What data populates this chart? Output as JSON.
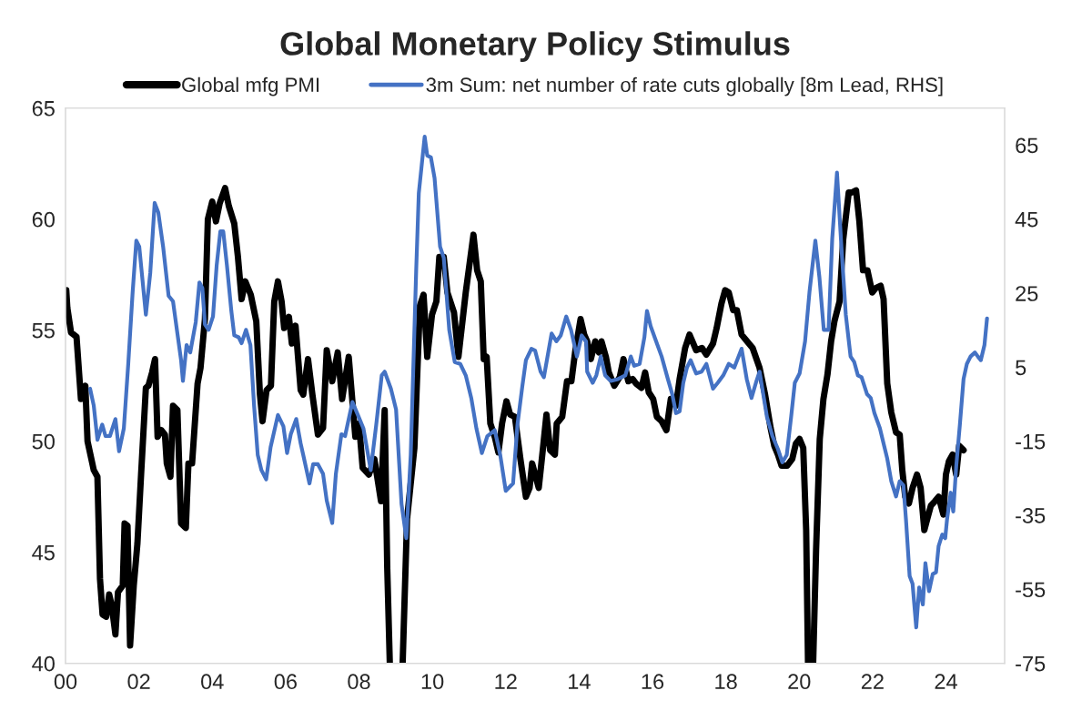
{
  "chart_data": {
    "type": "line",
    "title": "Global Monetary Policy Stimulus",
    "legend": "top",
    "grid": false,
    "xlim": [
      2000,
      2025.6
    ],
    "xticks": [
      {
        "value": 2000,
        "label": "00"
      },
      {
        "value": 2002,
        "label": "02"
      },
      {
        "value": 2004,
        "label": "04"
      },
      {
        "value": 2006,
        "label": "06"
      },
      {
        "value": 2008,
        "label": "08"
      },
      {
        "value": 2010,
        "label": "10"
      },
      {
        "value": 2012,
        "label": "12"
      },
      {
        "value": 2014,
        "label": "14"
      },
      {
        "value": 2016,
        "label": "16"
      },
      {
        "value": 2018,
        "label": "18"
      },
      {
        "value": 2020,
        "label": "20"
      },
      {
        "value": 2022,
        "label": "22"
      },
      {
        "value": 2024,
        "label": "24"
      }
    ],
    "ylim": [
      40,
      65
    ],
    "yticks": [
      40,
      45,
      50,
      55,
      60,
      65
    ],
    "y2lim": [
      -75,
      75
    ],
    "y2ticks": [
      -75,
      -55,
      -35,
      -15,
      5,
      25,
      45,
      65
    ],
    "series": [
      {
        "name": "Global mfg PMI",
        "color": "#000000",
        "x": [
          2000.02,
          2000.05,
          2000.15,
          2000.3,
          2000.42,
          2000.54,
          2000.6,
          2000.77,
          2000.87,
          2000.94,
          2001.01,
          2001.11,
          2001.19,
          2001.26,
          2001.36,
          2001.43,
          2001.56,
          2001.61,
          2001.69,
          2001.76,
          2001.86,
          2001.96,
          2002.06,
          2002.19,
          2002.26,
          2002.36,
          2002.44,
          2002.51,
          2002.61,
          2002.71,
          2002.76,
          2002.86,
          2002.93,
          2003.05,
          2003.15,
          2003.28,
          2003.35,
          2003.45,
          2003.6,
          2003.68,
          2003.8,
          2003.88,
          2004.0,
          2004.1,
          2004.2,
          2004.35,
          2004.45,
          2004.6,
          2004.7,
          2004.8,
          2004.9,
          2005.05,
          2005.2,
          2005.3,
          2005.37,
          2005.48,
          2005.6,
          2005.69,
          2005.79,
          2005.89,
          2005.96,
          2006.09,
          2006.17,
          2006.27,
          2006.41,
          2006.48,
          2006.61,
          2006.73,
          2006.88,
          2007.02,
          2007.12,
          2007.27,
          2007.42,
          2007.54,
          2007.72,
          2007.9,
          2008.0,
          2008.1,
          2008.27,
          2008.42,
          2008.6,
          2008.7,
          2008.77,
          2008.84,
          2009.0,
          2009.19,
          2009.31,
          2009.51,
          2009.66,
          2009.76,
          2009.86,
          2009.99,
          2010.11,
          2010.19,
          2010.31,
          2010.41,
          2010.59,
          2010.71,
          2010.91,
          2011.12,
          2011.22,
          2011.32,
          2011.4,
          2011.48,
          2011.58,
          2011.7,
          2011.8,
          2011.9,
          2012.02,
          2012.12,
          2012.25,
          2012.4,
          2012.55,
          2012.65,
          2012.72,
          2012.9,
          2013.01,
          2013.11,
          2013.21,
          2013.34,
          2013.39,
          2013.54,
          2013.67,
          2013.79,
          2013.89,
          2014.04,
          2014.14,
          2014.22,
          2014.32,
          2014.44,
          2014.54,
          2014.61,
          2014.73,
          2014.81,
          2014.96,
          2015.11,
          2015.21,
          2015.34,
          2015.46,
          2015.55,
          2015.7,
          2015.8,
          2015.9,
          2016.02,
          2016.12,
          2016.25,
          2016.38,
          2016.5,
          2016.64,
          2016.74,
          2016.89,
          2017.01,
          2017.19,
          2017.35,
          2017.47,
          2017.65,
          2017.75,
          2017.88,
          2017.98,
          2018.08,
          2018.2,
          2018.3,
          2018.43,
          2018.58,
          2018.73,
          2018.92,
          2019.07,
          2019.22,
          2019.32,
          2019.42,
          2019.52,
          2019.67,
          2019.81,
          2019.91,
          2020.01,
          2020.11,
          2020.19,
          2020.24,
          2020.31,
          2020.38,
          2020.46,
          2020.56,
          2020.66,
          2020.77,
          2020.87,
          2020.96,
          2021.1,
          2021.2,
          2021.35,
          2021.43,
          2021.55,
          2021.64,
          2021.74,
          2021.86,
          2021.99,
          2022.09,
          2022.22,
          2022.3,
          2022.4,
          2022.51,
          2022.64,
          2022.74,
          2022.81,
          2022.89,
          2022.99,
          2023.09,
          2023.21,
          2023.31,
          2023.41,
          2023.49,
          2023.59,
          2023.7,
          2023.8,
          2023.93,
          2024.0,
          2024.08,
          2024.18,
          2024.28,
          2024.36,
          2024.48
        ],
        "values": [
          56.8,
          56.0,
          54.9,
          54.7,
          51.9,
          52.5,
          50.0,
          48.7,
          48.4,
          43.8,
          42.2,
          42.1,
          43.1,
          42.6,
          41.3,
          43.2,
          43.5,
          46.3,
          46.2,
          40.8,
          43.5,
          45.4,
          48.5,
          52.4,
          52.5,
          53.1,
          53.7,
          50.2,
          50.5,
          50.3,
          49.0,
          48.4,
          51.6,
          51.4,
          46.3,
          46.1,
          49.0,
          49.0,
          52.6,
          53.3,
          55.5,
          60.0,
          60.8,
          59.9,
          60.7,
          61.4,
          60.6,
          59.8,
          58.3,
          56.4,
          57.2,
          56.6,
          55.4,
          52.1,
          50.9,
          52.3,
          52.5,
          56.3,
          57.2,
          56.3,
          55.1,
          55.6,
          54.4,
          55.2,
          52.3,
          52.1,
          53.7,
          52.1,
          50.3,
          50.6,
          54.1,
          52.7,
          54.0,
          51.9,
          53.8,
          50.2,
          50.8,
          48.8,
          48.5,
          49.2,
          47.3,
          51.4,
          44.3,
          40.0,
          null,
          40.0,
          46.5,
          49.7,
          56.1,
          56.6,
          53.8,
          55.7,
          56.3,
          58.3,
          58.3,
          56.7,
          55.8,
          53.8,
          56.7,
          59.3,
          57.7,
          57.2,
          53.7,
          53.8,
          50.8,
          50.2,
          49.5,
          50.8,
          51.8,
          51.2,
          51.1,
          49.2,
          47.5,
          47.9,
          49.0,
          47.9,
          49.6,
          51.2,
          49.6,
          49.4,
          50.8,
          51.1,
          52.7,
          52.7,
          54.0,
          55.5,
          54.8,
          54.5,
          53.7,
          54.5,
          54.0,
          54.5,
          53.8,
          53.1,
          52.5,
          52.9,
          53.7,
          52.7,
          52.8,
          52.6,
          52.4,
          53.1,
          52.2,
          51.9,
          51.1,
          50.9,
          50.5,
          51.9,
          51.6,
          52.8,
          54.2,
          54.8,
          54.1,
          54.2,
          53.9,
          54.4,
          55.1,
          56.2,
          56.8,
          56.7,
          55.9,
          55.9,
          54.8,
          54.5,
          54.2,
          53.3,
          52.1,
          50.6,
          49.8,
          49.4,
          48.9,
          48.9,
          49.2,
          49.9,
          50.1,
          49.7,
          46.0,
          40.0,
          null,
          40.0,
          45.1,
          50.1,
          51.9,
          53.0,
          54.5,
          55.4,
          56.3,
          59.1,
          61.2,
          61.2,
          61.3,
          59.9,
          57.7,
          57.7,
          56.7,
          56.9,
          57.0,
          56.4,
          52.6,
          51.3,
          50.4,
          50.3,
          48.7,
          47.5,
          47.2,
          47.9,
          48.5,
          47.9,
          46.0,
          46.5,
          47.1,
          47.3,
          47.5,
          46.7,
          48.5,
          49.1,
          49.4,
          48.5,
          49.8,
          49.6
        ]
      },
      {
        "name": "3m Sum: net number of rate cuts globally [8m Lead, RHS]",
        "color": "#4472c4",
        "axis": "y2",
        "x": [
          2000.67,
          2000.77,
          2000.87,
          2001.0,
          2001.09,
          2001.21,
          2001.36,
          2001.46,
          2001.59,
          2001.71,
          2001.83,
          2001.93,
          2002.01,
          2002.19,
          2002.31,
          2002.43,
          2002.53,
          2002.66,
          2002.81,
          2002.93,
          2003.05,
          2003.15,
          2003.2,
          2003.3,
          2003.4,
          2003.55,
          2003.65,
          2003.73,
          2003.8,
          2003.9,
          2004.02,
          2004.12,
          2004.22,
          2004.3,
          2004.4,
          2004.52,
          2004.6,
          2004.72,
          2004.8,
          2004.92,
          2005.04,
          2005.14,
          2005.24,
          2005.34,
          2005.47,
          2005.59,
          2005.79,
          2005.94,
          2006.04,
          2006.14,
          2006.29,
          2006.41,
          2006.48,
          2006.65,
          2006.75,
          2006.88,
          2007.02,
          2007.12,
          2007.27,
          2007.37,
          2007.52,
          2007.62,
          2007.82,
          2007.97,
          2008.12,
          2008.32,
          2008.47,
          2008.62,
          2008.7,
          2008.87,
          2009.01,
          2009.16,
          2009.29,
          2009.41,
          2009.56,
          2009.63,
          2009.79,
          2009.86,
          2009.96,
          2010.06,
          2010.21,
          2010.31,
          2010.46,
          2010.61,
          2010.76,
          2010.91,
          2011.06,
          2011.2,
          2011.35,
          2011.5,
          2011.7,
          2011.85,
          2012.0,
          2012.2,
          2012.32,
          2012.45,
          2012.55,
          2012.7,
          2012.8,
          2012.95,
          2013.04,
          2013.25,
          2013.38,
          2013.5,
          2013.65,
          2013.78,
          2013.94,
          2014.07,
          2014.19,
          2014.22,
          2014.37,
          2014.47,
          2014.59,
          2014.71,
          2014.86,
          2015.06,
          2015.26,
          2015.41,
          2015.5,
          2015.65,
          2015.78,
          2015.85,
          2015.95,
          2016.1,
          2016.25,
          2016.42,
          2016.54,
          2016.64,
          2016.74,
          2016.84,
          2016.94,
          2017.04,
          2017.19,
          2017.34,
          2017.47,
          2017.65,
          2017.78,
          2017.93,
          2018.08,
          2018.23,
          2018.43,
          2018.57,
          2018.7,
          2018.82,
          2018.92,
          2019.02,
          2019.12,
          2019.27,
          2019.42,
          2019.54,
          2019.66,
          2019.78,
          2019.88,
          2020.01,
          2020.16,
          2020.28,
          2020.44,
          2020.55,
          2020.67,
          2020.8,
          2020.9,
          2021.03,
          2021.15,
          2021.27,
          2021.4,
          2021.5,
          2021.6,
          2021.7,
          2021.85,
          2021.95,
          2022.05,
          2022.2,
          2022.3,
          2022.4,
          2022.51,
          2022.64,
          2022.74,
          2022.84,
          2022.91,
          2023.01,
          2023.09,
          2023.19,
          2023.27,
          2023.37,
          2023.44,
          2023.54,
          2023.64,
          2023.73,
          2023.8,
          2023.9,
          2023.98,
          2024.03,
          2024.13,
          2024.2,
          2024.28,
          2024.38,
          2024.48,
          2024.57,
          2024.67,
          2024.79,
          2024.87,
          2024.95,
          2025.05,
          2025.12
        ],
        "values": [
          -0.8,
          -5.4,
          -14.6,
          -10.5,
          -13.6,
          -13.6,
          -9.0,
          -17.7,
          -11.5,
          5.9,
          25.3,
          39.2,
          37.6,
          19.2,
          30.5,
          49.4,
          46.8,
          37.6,
          24.3,
          22.8,
          14.1,
          6.9,
          1.3,
          11.0,
          9.0,
          17.2,
          27.9,
          26.4,
          16.6,
          15.1,
          18.7,
          32.5,
          41.7,
          41.7,
          32.5,
          20.2,
          13.6,
          13.1,
          11.5,
          15.1,
          11.0,
          -5.4,
          -18.7,
          -22.8,
          -25.3,
          -16.6,
          -7.9,
          -11.0,
          -18.2,
          -13.1,
          -9.0,
          -15.6,
          -18.7,
          -26.4,
          -21.2,
          -21.2,
          -23.8,
          -31.0,
          -37.1,
          -23.8,
          -13.1,
          -13.6,
          -4.4,
          -7.9,
          -11.5,
          -22.8,
          -10.5,
          2.8,
          3.8,
          -0.8,
          -6.4,
          -32.0,
          -41.2,
          -18.7,
          31.5,
          52.0,
          67.3,
          62.2,
          61.7,
          56.1,
          37.6,
          34.6,
          15.1,
          6.4,
          5.9,
          2.8,
          -3.3,
          -11.5,
          -18.2,
          -13.6,
          -12.0,
          -18.7,
          -28.4,
          -26.4,
          -10.5,
          -0.3,
          6.9,
          10.0,
          9.5,
          3.8,
          2.3,
          14.1,
          12.0,
          13.6,
          18.7,
          15.1,
          7.9,
          13.6,
          12.0,
          3.8,
          0.8,
          2.8,
          7.9,
          2.8,
          1.3,
          1.8,
          2.8,
          7.9,
          5.4,
          5.9,
          13.1,
          20.2,
          16.1,
          12.0,
          7.9,
          1.8,
          -2.3,
          -7.4,
          -6.9,
          0.8,
          4.9,
          6.9,
          3.3,
          3.8,
          5.9,
          -0.8,
          0.8,
          2.8,
          5.9,
          4.9,
          10.0,
          1.8,
          -3.3,
          0.8,
          3.8,
          -2.3,
          -8.4,
          -13.6,
          -17.1,
          -20.7,
          -18.7,
          -8.4,
          0.8,
          3.3,
          12.0,
          25.3,
          39.2,
          29.4,
          15.1,
          15.1,
          39.7,
          57.6,
          37.6,
          19.2,
          7.9,
          6.4,
          2.8,
          2.3,
          -2.3,
          -3.3,
          -7.4,
          -11.5,
          -15.6,
          -19.7,
          -25.8,
          -29.9,
          -25.8,
          -26.9,
          -36.1,
          -51.4,
          -53.5,
          -65.3,
          -54.5,
          -59.1,
          -47.9,
          -55.5,
          -50.9,
          -50.4,
          -43.3,
          -40.2,
          -41.2,
          -36.1,
          -28.9,
          -34.0,
          -21.8,
          -10.5,
          1.8,
          5.9,
          7.9,
          9.0,
          7.9,
          6.9,
          11.0,
          18.2
        ]
      }
    ]
  }
}
